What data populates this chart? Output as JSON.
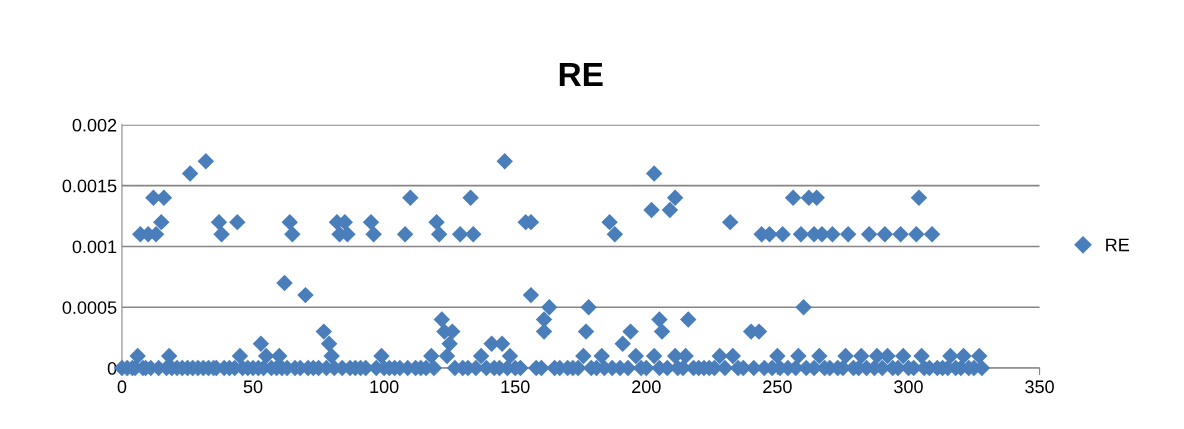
{
  "chart_data": {
    "type": "scatter",
    "title": "RE",
    "marker": "diamond",
    "grid": "y",
    "legend": "right",
    "xlim": [
      0,
      350
    ],
    "xticks": [
      0,
      50,
      100,
      150,
      200,
      250,
      300,
      350
    ],
    "ylim": [
      0,
      0.002
    ],
    "yticks": [
      0,
      {
        "value": 0.0005,
        "label": "0.0005"
      },
      {
        "value": 0.001,
        "label": "0.001"
      },
      {
        "value": 0.0015,
        "label": "0.0015"
      },
      {
        "value": 0.002,
        "label": "0.002"
      }
    ],
    "series": [
      {
        "name": "RE",
        "color": "#4a7ebb",
        "x": [
          0,
          2,
          4,
          5,
          8,
          9,
          11,
          14,
          17,
          19,
          21,
          23,
          25,
          27,
          29,
          31,
          33,
          35,
          36,
          39,
          41,
          43,
          46,
          48,
          50,
          52,
          54,
          57,
          59,
          61,
          63,
          66,
          68,
          71,
          73,
          75,
          78,
          81,
          84,
          87,
          89,
          91,
          93,
          97,
          100,
          102,
          104,
          106,
          109,
          112,
          114,
          116,
          119,
          127,
          130,
          132,
          135,
          139,
          142,
          144,
          147,
          150,
          152,
          158,
          160,
          165,
          167,
          170,
          172,
          174,
          179,
          181,
          184,
          187,
          190,
          193,
          198,
          200,
          205,
          208,
          212,
          214,
          218,
          220,
          222,
          224,
          226,
          230,
          235,
          237,
          241,
          245,
          248,
          251,
          254,
          257,
          261,
          264,
          268,
          270,
          273,
          275,
          279,
          281,
          284,
          287,
          290,
          294,
          296,
          300,
          302,
          306,
          308,
          311,
          313,
          315,
          318,
          320,
          323,
          325,
          328,
          6,
          18,
          45,
          55,
          60,
          80,
          99,
          118,
          124,
          137,
          148,
          176,
          183,
          196,
          203,
          211,
          215,
          228,
          233,
          250,
          258,
          266,
          276,
          282,
          288,
          292,
          298,
          305,
          316,
          321,
          327,
          53,
          62,
          70,
          77,
          79,
          122,
          123,
          125,
          126,
          141,
          145,
          156,
          161,
          161,
          163,
          177,
          178,
          191,
          194,
          205,
          206,
          216,
          240,
          243,
          260,
          7,
          10,
          12,
          13,
          15,
          16,
          26,
          32,
          37,
          38,
          44,
          64,
          65,
          82,
          83,
          85,
          86,
          95,
          96,
          108,
          110,
          120,
          121,
          129,
          133,
          134,
          146,
          154,
          156,
          186,
          188,
          202,
          203,
          209,
          211,
          232,
          244,
          247,
          252,
          259,
          264,
          267,
          271,
          277,
          285,
          291,
          297,
          303,
          309,
          256,
          262,
          265,
          304
        ],
        "values": [
          0,
          0,
          0,
          0,
          0,
          0,
          0,
          0,
          0,
          0,
          0,
          0,
          0,
          0,
          0,
          0,
          0,
          0,
          0,
          0,
          0,
          0,
          0,
          0,
          0,
          0,
          0,
          0,
          0,
          0,
          0,
          0,
          0,
          0,
          0,
          0,
          0,
          0,
          0,
          0,
          0,
          0,
          0,
          0,
          0,
          0,
          0,
          0,
          0,
          0,
          0,
          0,
          0,
          0,
          0,
          0,
          0,
          0,
          0,
          0,
          0,
          0,
          0,
          0,
          0,
          0,
          0,
          0,
          0,
          0,
          0,
          0,
          0,
          0,
          0,
          0,
          0,
          0,
          0,
          0,
          0,
          0,
          0,
          0,
          0,
          0,
          0,
          0,
          0,
          0,
          0,
          0,
          0,
          0,
          0,
          0,
          0,
          0,
          0,
          0,
          0,
          0,
          0,
          0,
          0,
          0,
          0,
          0,
          0,
          0,
          0,
          0,
          0,
          0,
          0,
          0,
          0,
          0,
          0,
          0,
          0,
          0.0001,
          0.0001,
          0.0001,
          0.0001,
          0.0001,
          0.0001,
          0.0001,
          0.0001,
          0.0001,
          0.0001,
          0.0001,
          0.0001,
          0.0001,
          0.0001,
          0.0001,
          0.0001,
          0.0001,
          0.0001,
          0.0001,
          0.0001,
          0.0001,
          0.0001,
          0.0001,
          0.0001,
          0.0001,
          0.0001,
          0.0001,
          0.0001,
          0.0001,
          0.0001,
          0.0001,
          0.0002,
          0.0007,
          0.0006,
          0.0003,
          0.0002,
          0.0004,
          0.0003,
          0.0002,
          0.0003,
          0.0002,
          0.0002,
          0.0006,
          0.0004,
          0.0003,
          0.0005,
          0.0003,
          0.0005,
          0.0002,
          0.0003,
          0.0004,
          0.0003,
          0.0004,
          0.0003,
          0.0003,
          0.0005,
          0.0011,
          0.0011,
          0.0014,
          0.0011,
          0.0012,
          0.0014,
          0.0016,
          0.0017,
          0.0012,
          0.0011,
          0.0012,
          0.0012,
          0.0011,
          0.0012,
          0.0011,
          0.0012,
          0.0011,
          0.0012,
          0.0011,
          0.0011,
          0.0014,
          0.0012,
          0.0011,
          0.0011,
          0.0014,
          0.0011,
          0.0017,
          0.0012,
          0.0012,
          0.0012,
          0.0011,
          0.0013,
          0.0016,
          0.0013,
          0.0014,
          0.0012,
          0.0011,
          0.0011,
          0.0011,
          0.0011,
          0.0011,
          0.0011,
          0.0011,
          0.0011,
          0.0011,
          0.0011,
          0.0011,
          0.0011,
          0.0011,
          0.0014,
          0.0014,
          0.0014,
          0.0014
        ]
      }
    ]
  }
}
